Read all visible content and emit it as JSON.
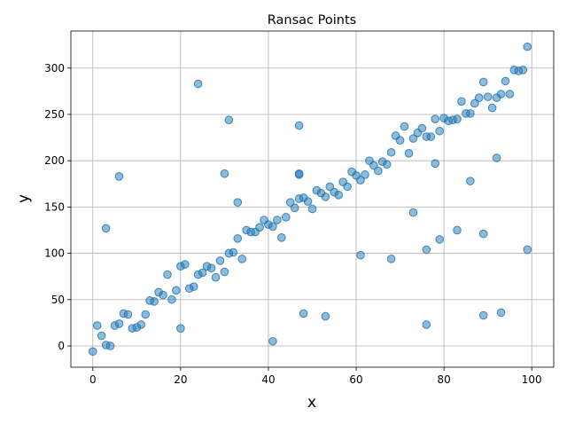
{
  "chart_data": {
    "type": "scatter",
    "title": "Ransac Points",
    "xlabel": "x",
    "ylabel": "y",
    "xlim": [
      -5,
      105
    ],
    "ylim": [
      -23,
      340
    ],
    "xticks": [
      0,
      20,
      40,
      60,
      80,
      100
    ],
    "yticks": [
      0,
      50,
      100,
      150,
      200,
      250,
      300
    ],
    "grid": true,
    "legend": "none",
    "point_color": "#1f77b4",
    "series": [
      {
        "x": [
          0,
          1,
          2,
          3,
          4,
          5,
          6,
          7,
          8,
          9,
          10,
          11,
          12,
          13,
          14,
          15,
          16,
          17,
          18,
          19,
          20,
          21,
          22,
          23,
          24,
          25,
          26,
          27,
          28,
          29,
          30,
          31,
          32,
          33,
          34,
          35,
          36,
          37,
          38,
          39,
          40,
          41,
          42,
          43,
          44,
          45,
          46,
          47,
          48,
          49,
          50,
          51,
          52,
          53,
          54,
          55,
          56,
          57,
          58,
          59,
          60,
          61,
          62,
          63,
          64,
          65,
          66,
          67,
          68,
          69,
          70,
          71,
          72,
          73,
          74,
          75,
          76,
          77,
          78,
          79,
          80,
          81,
          82,
          83,
          84,
          85,
          86,
          87,
          88,
          89,
          90,
          91,
          92,
          93,
          94,
          95,
          96,
          97,
          98,
          99,
          3,
          6,
          20,
          24,
          31,
          30,
          33,
          41,
          47,
          47,
          48,
          53,
          61,
          68,
          73,
          76,
          76,
          78,
          79,
          83,
          86,
          89,
          89,
          92,
          93,
          99,
          47
        ],
        "y": [
          -6,
          22,
          11,
          1,
          0,
          22,
          24,
          35,
          34,
          19,
          20,
          23,
          34,
          49,
          48,
          58,
          55,
          77,
          50,
          60,
          86,
          88,
          62,
          64,
          77,
          79,
          86,
          84,
          74,
          92,
          80,
          100,
          101,
          116,
          94,
          125,
          123,
          123,
          128,
          136,
          131,
          129,
          136,
          117,
          139,
          155,
          149,
          159,
          160,
          156,
          148,
          168,
          165,
          161,
          172,
          166,
          163,
          177,
          172,
          188,
          184,
          179,
          185,
          200,
          195,
          189,
          199,
          196,
          209,
          227,
          222,
          237,
          208,
          224,
          230,
          235,
          226,
          226,
          245,
          232,
          246,
          243,
          244,
          245,
          264,
          251,
          251,
          262,
          268,
          285,
          269,
          257,
          268,
          272,
          286,
          272,
          298,
          297,
          298,
          323,
          127,
          183,
          19,
          283,
          244,
          186,
          155,
          5,
          185,
          238,
          35,
          32,
          98,
          94,
          144,
          104,
          23,
          197,
          115,
          125,
          178,
          33,
          121,
          203,
          36,
          104,
          186
        ]
      }
    ]
  }
}
